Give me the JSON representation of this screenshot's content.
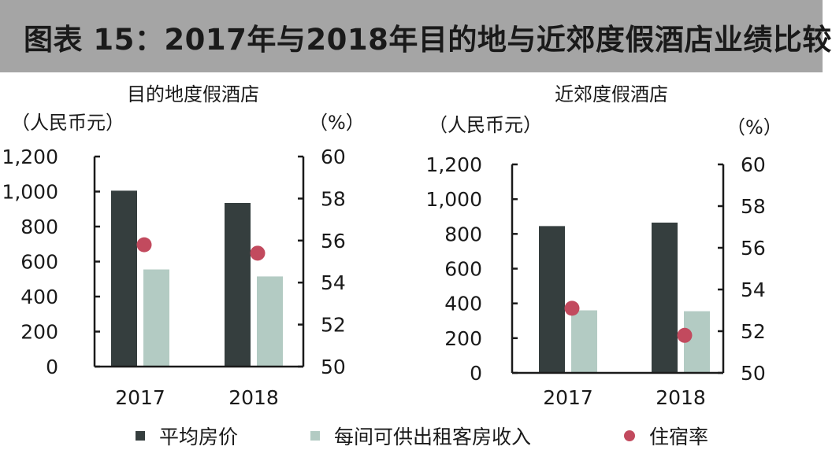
{
  "header": {
    "title": "图表 15：2017年与2018年目的地与近郊度假酒店业绩比较"
  },
  "colors": {
    "adr": "#353e3e",
    "revpar": "#b3cbc3",
    "occupancy": "#c24a5e",
    "header_bg": "#a5a5a5"
  },
  "legend": [
    {
      "label": "平均房价",
      "marker": "square",
      "color": "#353e3e"
    },
    {
      "label": "每间可供出租客房收入",
      "marker": "square",
      "color": "#b3cbc3"
    },
    {
      "label": "住宿率",
      "marker": "circle",
      "color": "#c24a5e"
    }
  ],
  "chart_data": [
    {
      "type": "bar",
      "title": "目的地度假酒店",
      "categories": [
        "2017",
        "2018"
      ],
      "left_axis": {
        "label": "（人民币元）",
        "range": [
          0,
          1200
        ],
        "ticks": [
          "0",
          "200",
          "400",
          "600",
          "800",
          "1,000",
          "1,200"
        ]
      },
      "right_axis": {
        "label": "（%）",
        "range": [
          50,
          60
        ],
        "ticks": [
          "50",
          "52",
          "54",
          "56",
          "58",
          "60"
        ]
      },
      "series": [
        {
          "name": "平均房价",
          "axis": "left",
          "kind": "bar",
          "values": [
            1005,
            935
          ]
        },
        {
          "name": "每间可供出租客房收入",
          "axis": "left",
          "kind": "bar",
          "values": [
            555,
            515
          ]
        },
        {
          "name": "住宿率",
          "axis": "right",
          "kind": "point",
          "values": [
            55.8,
            55.4
          ]
        }
      ],
      "grid": false
    },
    {
      "type": "bar",
      "title": "近郊度假酒店",
      "categories": [
        "2017",
        "2018"
      ],
      "left_axis": {
        "label": "（人民币元）",
        "range": [
          0,
          1200
        ],
        "ticks": [
          "0",
          "200",
          "400",
          "600",
          "800",
          "1,000",
          "1,200"
        ]
      },
      "right_axis": {
        "label": "（%）",
        "range": [
          50,
          60
        ],
        "ticks": [
          "50",
          "52",
          "54",
          "56",
          "58",
          "60"
        ]
      },
      "series": [
        {
          "name": "平均房价",
          "axis": "left",
          "kind": "bar",
          "values": [
            845,
            865
          ]
        },
        {
          "name": "每间可供出租客房收入",
          "axis": "left",
          "kind": "bar",
          "values": [
            360,
            355
          ]
        },
        {
          "name": "住宿率",
          "axis": "right",
          "kind": "point",
          "values": [
            53.1,
            51.8
          ]
        }
      ],
      "grid": false
    }
  ]
}
